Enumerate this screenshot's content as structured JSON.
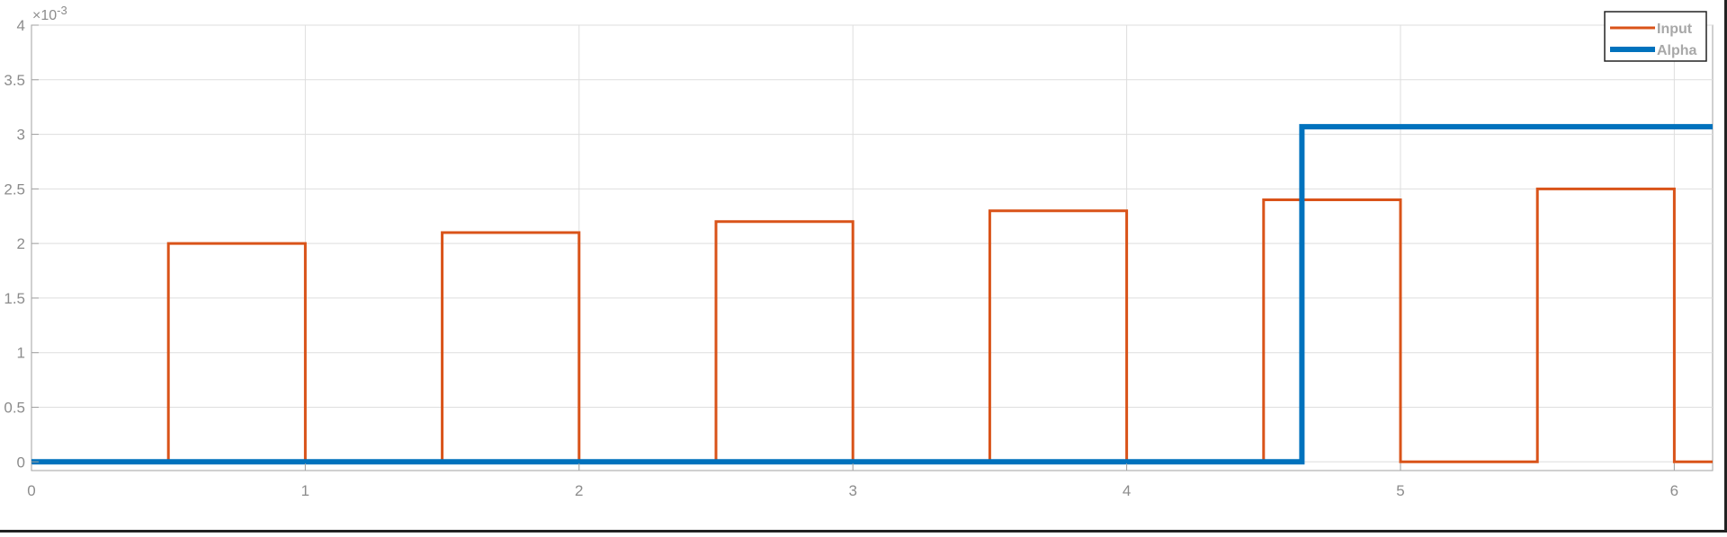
{
  "chart_data": {
    "type": "line",
    "title": "",
    "xlabel": "",
    "ylabel": "",
    "y_exponent_label": "×10",
    "y_exponent_power": "-3",
    "xlim": [
      0,
      6.14
    ],
    "ylim": [
      -8e-05,
      0.004
    ],
    "x_ticks": [
      0,
      1,
      2,
      3,
      4,
      5,
      6
    ],
    "y_ticks": [
      0,
      0.0005,
      0.001,
      0.0015,
      0.002,
      0.0025,
      0.003,
      0.0035,
      0.004
    ],
    "x_tick_labels": [
      "0",
      "1",
      "2",
      "3",
      "4",
      "5",
      "6"
    ],
    "y_tick_labels": [
      "0",
      "0.5",
      "1",
      "1.5",
      "2",
      "2.5",
      "3",
      "3.5",
      "4"
    ],
    "grid": true,
    "legend_position": "top-right",
    "series": [
      {
        "name": "Input",
        "color": "#D95319",
        "line_width": "normal",
        "step": true,
        "x": [
          0,
          0.5,
          0.5,
          1.0,
          1.0,
          1.5,
          1.5,
          2.0,
          2.0,
          2.5,
          2.5,
          3.0,
          3.0,
          3.5,
          3.5,
          4.0,
          4.0,
          4.5,
          4.5,
          5.0,
          5.0,
          5.5,
          5.5,
          6.0,
          6.0,
          6.14
        ],
        "y": [
          0,
          0,
          0.002,
          0.002,
          0,
          0,
          0.0021,
          0.0021,
          0,
          0,
          0.0022,
          0.0022,
          0,
          0,
          0.0023,
          0.0023,
          0,
          0,
          0.0024,
          0.0024,
          0,
          0,
          0.0025,
          0.0025,
          0,
          0
        ]
      },
      {
        "name": "Alpha",
        "color": "#0072BD",
        "line_width": "thick",
        "step": true,
        "x": [
          0,
          4.64,
          4.64,
          6.14
        ],
        "y": [
          0,
          0,
          0.00307,
          0.00307
        ]
      }
    ]
  }
}
